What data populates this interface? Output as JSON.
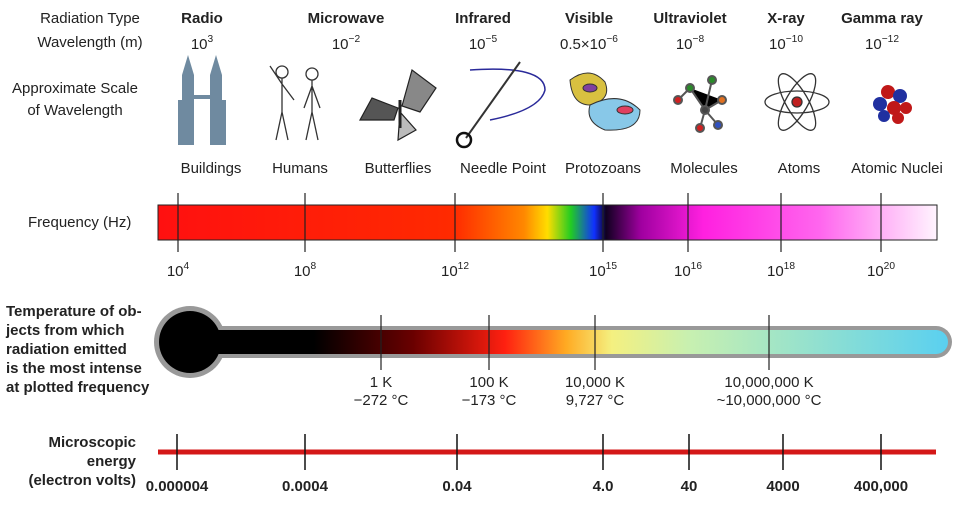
{
  "header": {
    "radiation_type": "Radiation Type",
    "wavelength": "Wavelength (m)",
    "scale": [
      "Approximate Scale",
      "of Wavelength"
    ]
  },
  "radiation_types": [
    {
      "name": "Radio",
      "wavelength": {
        "base": "10",
        "exp": "3"
      }
    },
    {
      "name": "Microwave",
      "wavelength": {
        "base": "10",
        "exp": "−2"
      }
    },
    {
      "name": "Infrared",
      "wavelength": {
        "base": "10",
        "exp": "−5"
      }
    },
    {
      "name": "Visible",
      "wavelength": {
        "base": "0.5×10",
        "exp": "−6"
      }
    },
    {
      "name": "Ultraviolet",
      "wavelength": {
        "base": "10",
        "exp": "−8"
      }
    },
    {
      "name": "X-ray",
      "wavelength": {
        "base": "10",
        "exp": "−10"
      }
    },
    {
      "name": "Gamma ray",
      "wavelength": {
        "base": "10",
        "exp": "−12"
      }
    }
  ],
  "scale_examples": [
    "Buildings",
    "Humans",
    "Butterflies",
    "Needle Point",
    "Protozoans",
    "Molecules",
    "Atoms",
    "Atomic Nuclei"
  ],
  "frequency": {
    "label": "Frequency (Hz)",
    "ticks": [
      {
        "base": "10",
        "exp": "4"
      },
      {
        "base": "10",
        "exp": "8"
      },
      {
        "base": "10",
        "exp": "12"
      },
      {
        "base": "10",
        "exp": "15"
      },
      {
        "base": "10",
        "exp": "16"
      },
      {
        "base": "10",
        "exp": "18"
      },
      {
        "base": "10",
        "exp": "20"
      }
    ]
  },
  "temperature": {
    "label": [
      "Temperature  of ob-",
      "jects from which",
      "radiation emitted",
      "is the most intense",
      "at plotted frequency"
    ],
    "ticks": [
      {
        "kelvin": "1 K",
        "celsius": "−272 °C"
      },
      {
        "kelvin": "100 K",
        "celsius": "−173 °C"
      },
      {
        "kelvin": "10,000 K",
        "celsius": "9,727 °C"
      },
      {
        "kelvin": "10,000,000 K",
        "celsius": "~10,000,000 °C"
      }
    ]
  },
  "energy": {
    "label": [
      "Microscopic",
      "energy",
      "(electron volts)"
    ],
    "ticks": [
      "0.000004",
      "0.0004",
      "0.04",
      "4.0",
      "40",
      "4000",
      "400,000"
    ]
  }
}
